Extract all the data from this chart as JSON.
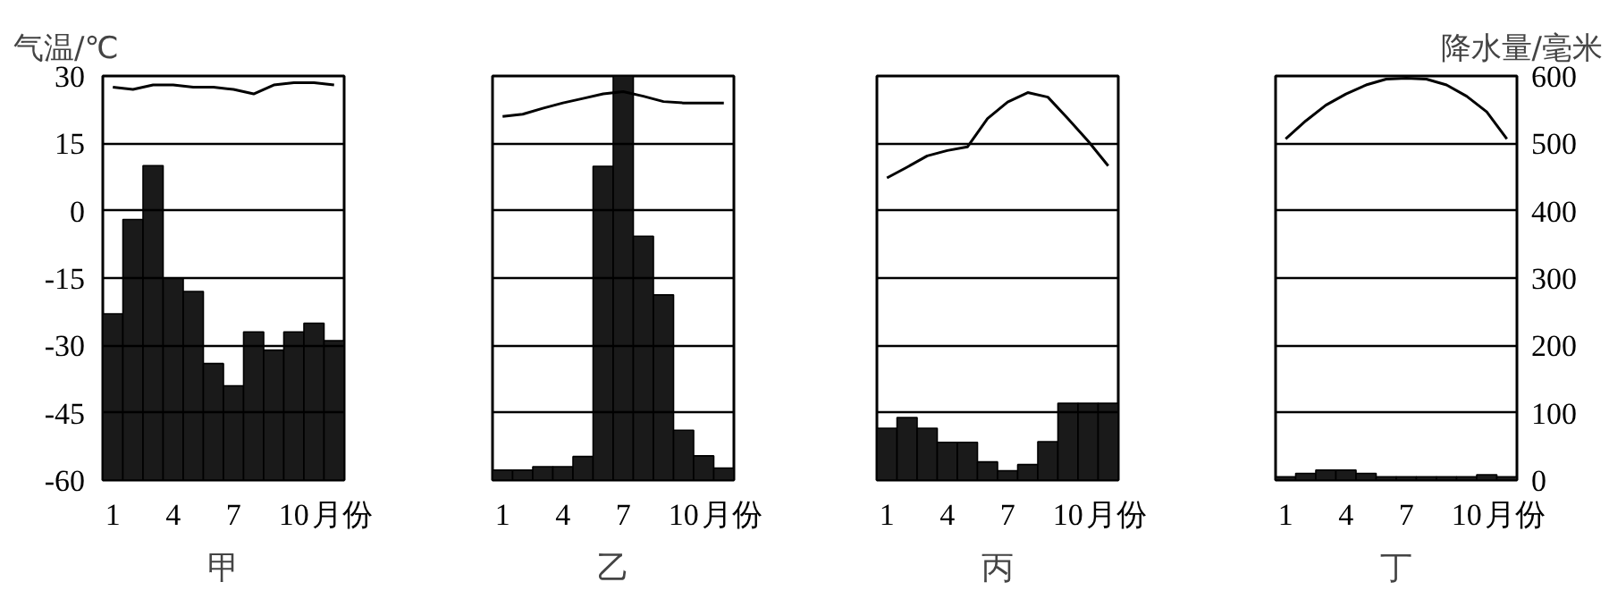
{
  "chart_data": [
    {
      "type": "bar",
      "title": "甲",
      "ylabel": "气温/℃",
      "xlabel": "月份",
      "categories": [
        "1",
        null,
        null,
        "4",
        null,
        null,
        "7",
        null,
        null,
        "10",
        null,
        null
      ],
      "ylim": [
        -60,
        30
      ],
      "yticks": [
        -60,
        -45,
        -30,
        -15,
        0,
        15,
        30
      ],
      "y2lim": [
        0,
        600
      ],
      "grid": "y",
      "series": [
        {
          "axis": "y2",
          "color": "#1a1a1a",
          "values": [
            247,
            387,
            467,
            300,
            280,
            173,
            140,
            220,
            193,
            220,
            233,
            207
          ]
        },
        {
          "type": "line",
          "axis": "y",
          "color": "#000000",
          "values": [
            27.5,
            27,
            28,
            28,
            27.5,
            27.5,
            27,
            26,
            28,
            28.5,
            28.5,
            28
          ]
        }
      ]
    },
    {
      "type": "bar",
      "title": "乙",
      "xlabel": "月份",
      "categories": [
        "1",
        null,
        null,
        "4",
        null,
        null,
        "7",
        null,
        null,
        "10",
        null,
        null
      ],
      "ylim": [
        -60,
        30
      ],
      "yticks": [
        -60,
        -45,
        -30,
        -15,
        0,
        15,
        30
      ],
      "y2lim": [
        0,
        600
      ],
      "grid": "y",
      "tick_labels": "x",
      "series": [
        {
          "axis": "y2",
          "color": "#1a1a1a",
          "values": [
            15,
            15,
            20,
            20,
            35,
            466,
            600,
            362,
            275,
            74,
            36,
            18
          ]
        },
        {
          "type": "line",
          "axis": "y",
          "color": "#000000",
          "values": [
            21,
            21.5,
            22.8,
            24,
            25,
            26,
            26.5,
            25.5,
            24.3,
            24,
            24,
            24
          ]
        }
      ]
    },
    {
      "type": "bar",
      "title": "丙",
      "xlabel": "月份",
      "categories": [
        "1",
        null,
        null,
        "4",
        null,
        null,
        "7",
        null,
        null,
        "10",
        null,
        null
      ],
      "ylim": [
        -60,
        30
      ],
      "yticks": [
        -60,
        -45,
        -30,
        -15,
        0,
        15,
        30
      ],
      "y2lim": [
        0,
        600
      ],
      "grid": "y",
      "tick_labels": "x",
      "series": [
        {
          "axis": "y2",
          "color": "#1a1a1a",
          "values": [
            77,
            93,
            77,
            56,
            56,
            27,
            14,
            23,
            57,
            114,
            114,
            114
          ]
        },
        {
          "type": "line",
          "axis": "y",
          "color": "#000000",
          "values": [
            7.3,
            9.7,
            12.2,
            13.4,
            14.2,
            20.5,
            24.2,
            26.3,
            25.3,
            20.5,
            15.5,
            10
          ]
        }
      ]
    },
    {
      "type": "bar",
      "title": "丁",
      "y2label": "降水量/毫米",
      "xlabel": "月份",
      "categories": [
        "1",
        null,
        null,
        "4",
        null,
        null,
        "7",
        null,
        null,
        "10",
        null,
        null
      ],
      "ylim": [
        -60,
        30
      ],
      "y2lim": [
        0,
        600
      ],
      "y2ticks": [
        0,
        100,
        200,
        300,
        400,
        500,
        600
      ],
      "grid": "y",
      "series": [
        {
          "axis": "y2",
          "color": "#1a1a1a",
          "values": [
            5,
            10,
            15,
            15,
            10,
            5,
            5,
            5,
            5,
            5,
            8,
            5
          ]
        },
        {
          "type": "line",
          "axis": "y",
          "color": "#000000",
          "values": [
            16,
            20,
            23.5,
            26,
            28,
            29.3,
            29.5,
            29.3,
            28,
            25.5,
            22,
            16
          ]
        }
      ]
    }
  ]
}
